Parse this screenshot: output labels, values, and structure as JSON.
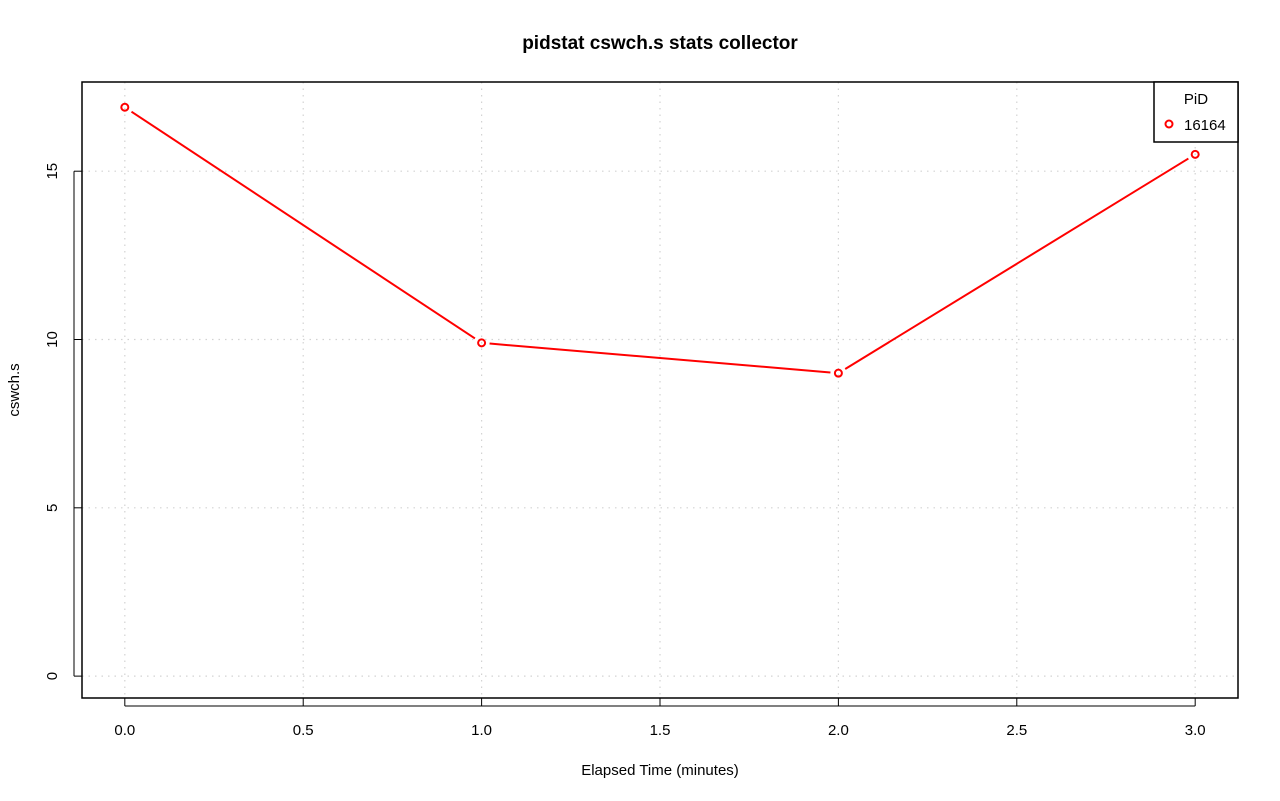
{
  "chart_data": {
    "type": "line",
    "title": "pidstat cswch.s stats collector",
    "xlabel": "Elapsed Time (minutes)",
    "ylabel": "cswch.s",
    "xlim": [
      -0.12,
      3.12
    ],
    "ylim": [
      -0.65,
      17.65
    ],
    "x_ticks": [
      0.0,
      0.5,
      1.0,
      1.5,
      2.0,
      2.5,
      3.0
    ],
    "x_tick_labels": [
      "0.0",
      "0.5",
      "1.0",
      "1.5",
      "2.0",
      "2.5",
      "3.0"
    ],
    "y_ticks": [
      0,
      5,
      10,
      15
    ],
    "y_tick_labels": [
      "0",
      "5",
      "10",
      "15"
    ],
    "grid": true,
    "legend": {
      "title": "PiD",
      "position": "top-right"
    },
    "series": [
      {
        "name": "16164",
        "color": "#ff0000",
        "x": [
          0,
          1,
          2,
          3
        ],
        "y": [
          16.9,
          9.9,
          9.0,
          15.5
        ]
      }
    ]
  }
}
